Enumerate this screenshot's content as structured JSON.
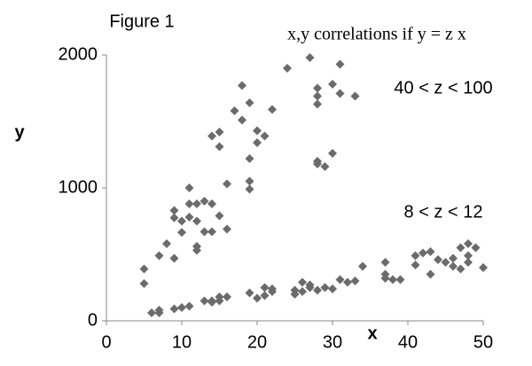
{
  "chart_data": {
    "type": "scatter",
    "title": "Figure 1",
    "annotations": [
      "x,y correlations if y = z x",
      "40 < z < 100",
      "8 < z < 12"
    ],
    "xlabel": "x",
    "ylabel": "y",
    "x": [
      5,
      5,
      7,
      8,
      9,
      9,
      9,
      10,
      10,
      11,
      11,
      11,
      12,
      12,
      12,
      12,
      13,
      13,
      14,
      14,
      14,
      15,
      15,
      15,
      16,
      16,
      17,
      18,
      18,
      19,
      19,
      19,
      19,
      20,
      20,
      21,
      22,
      24,
      27,
      28,
      28,
      28,
      28,
      28,
      29,
      30,
      30,
      31,
      31,
      33,
      6,
      7,
      7,
      9,
      10,
      11,
      13,
      14,
      14,
      15,
      15,
      16,
      19,
      20,
      21,
      21,
      22,
      22,
      25,
      25,
      26,
      26,
      27,
      27,
      28,
      29,
      30,
      31,
      32,
      33,
      34,
      37,
      37,
      37,
      38,
      39,
      41,
      41,
      42,
      43,
      43,
      44,
      45,
      46,
      46,
      47,
      47,
      48,
      48,
      48,
      49,
      50
    ],
    "values": [
      390,
      280,
      490,
      580,
      830,
      775,
      470,
      665,
      750,
      1000,
      880,
      780,
      880,
      750,
      560,
      530,
      900,
      670,
      880,
      670,
      1390,
      1420,
      1310,
      790,
      1030,
      690,
      1580,
      1510,
      1770,
      1640,
      1220,
      1050,
      990,
      1430,
      1340,
      1390,
      1590,
      1900,
      1980,
      1750,
      1690,
      1630,
      1200,
      1180,
      1160,
      1780,
      1260,
      1930,
      1710,
      1690,
      60,
      60,
      80,
      90,
      100,
      110,
      150,
      140,
      150,
      150,
      180,
      180,
      210,
      170,
      250,
      190,
      240,
      220,
      200,
      230,
      290,
      220,
      270,
      250,
      230,
      250,
      240,
      310,
      290,
      300,
      410,
      440,
      350,
      320,
      310,
      310,
      490,
      420,
      510,
      520,
      350,
      460,
      440,
      470,
      410,
      550,
      390,
      580,
      490,
      440,
      550,
      400
    ],
    "color": "#6b6b6b",
    "xlim": [
      0,
      50
    ],
    "xticks": [
      0,
      10,
      20,
      30,
      40,
      50
    ],
    "ylim": [
      0,
      2000
    ],
    "yticks": [
      0,
      1000,
      2000
    ],
    "grid": false
  }
}
